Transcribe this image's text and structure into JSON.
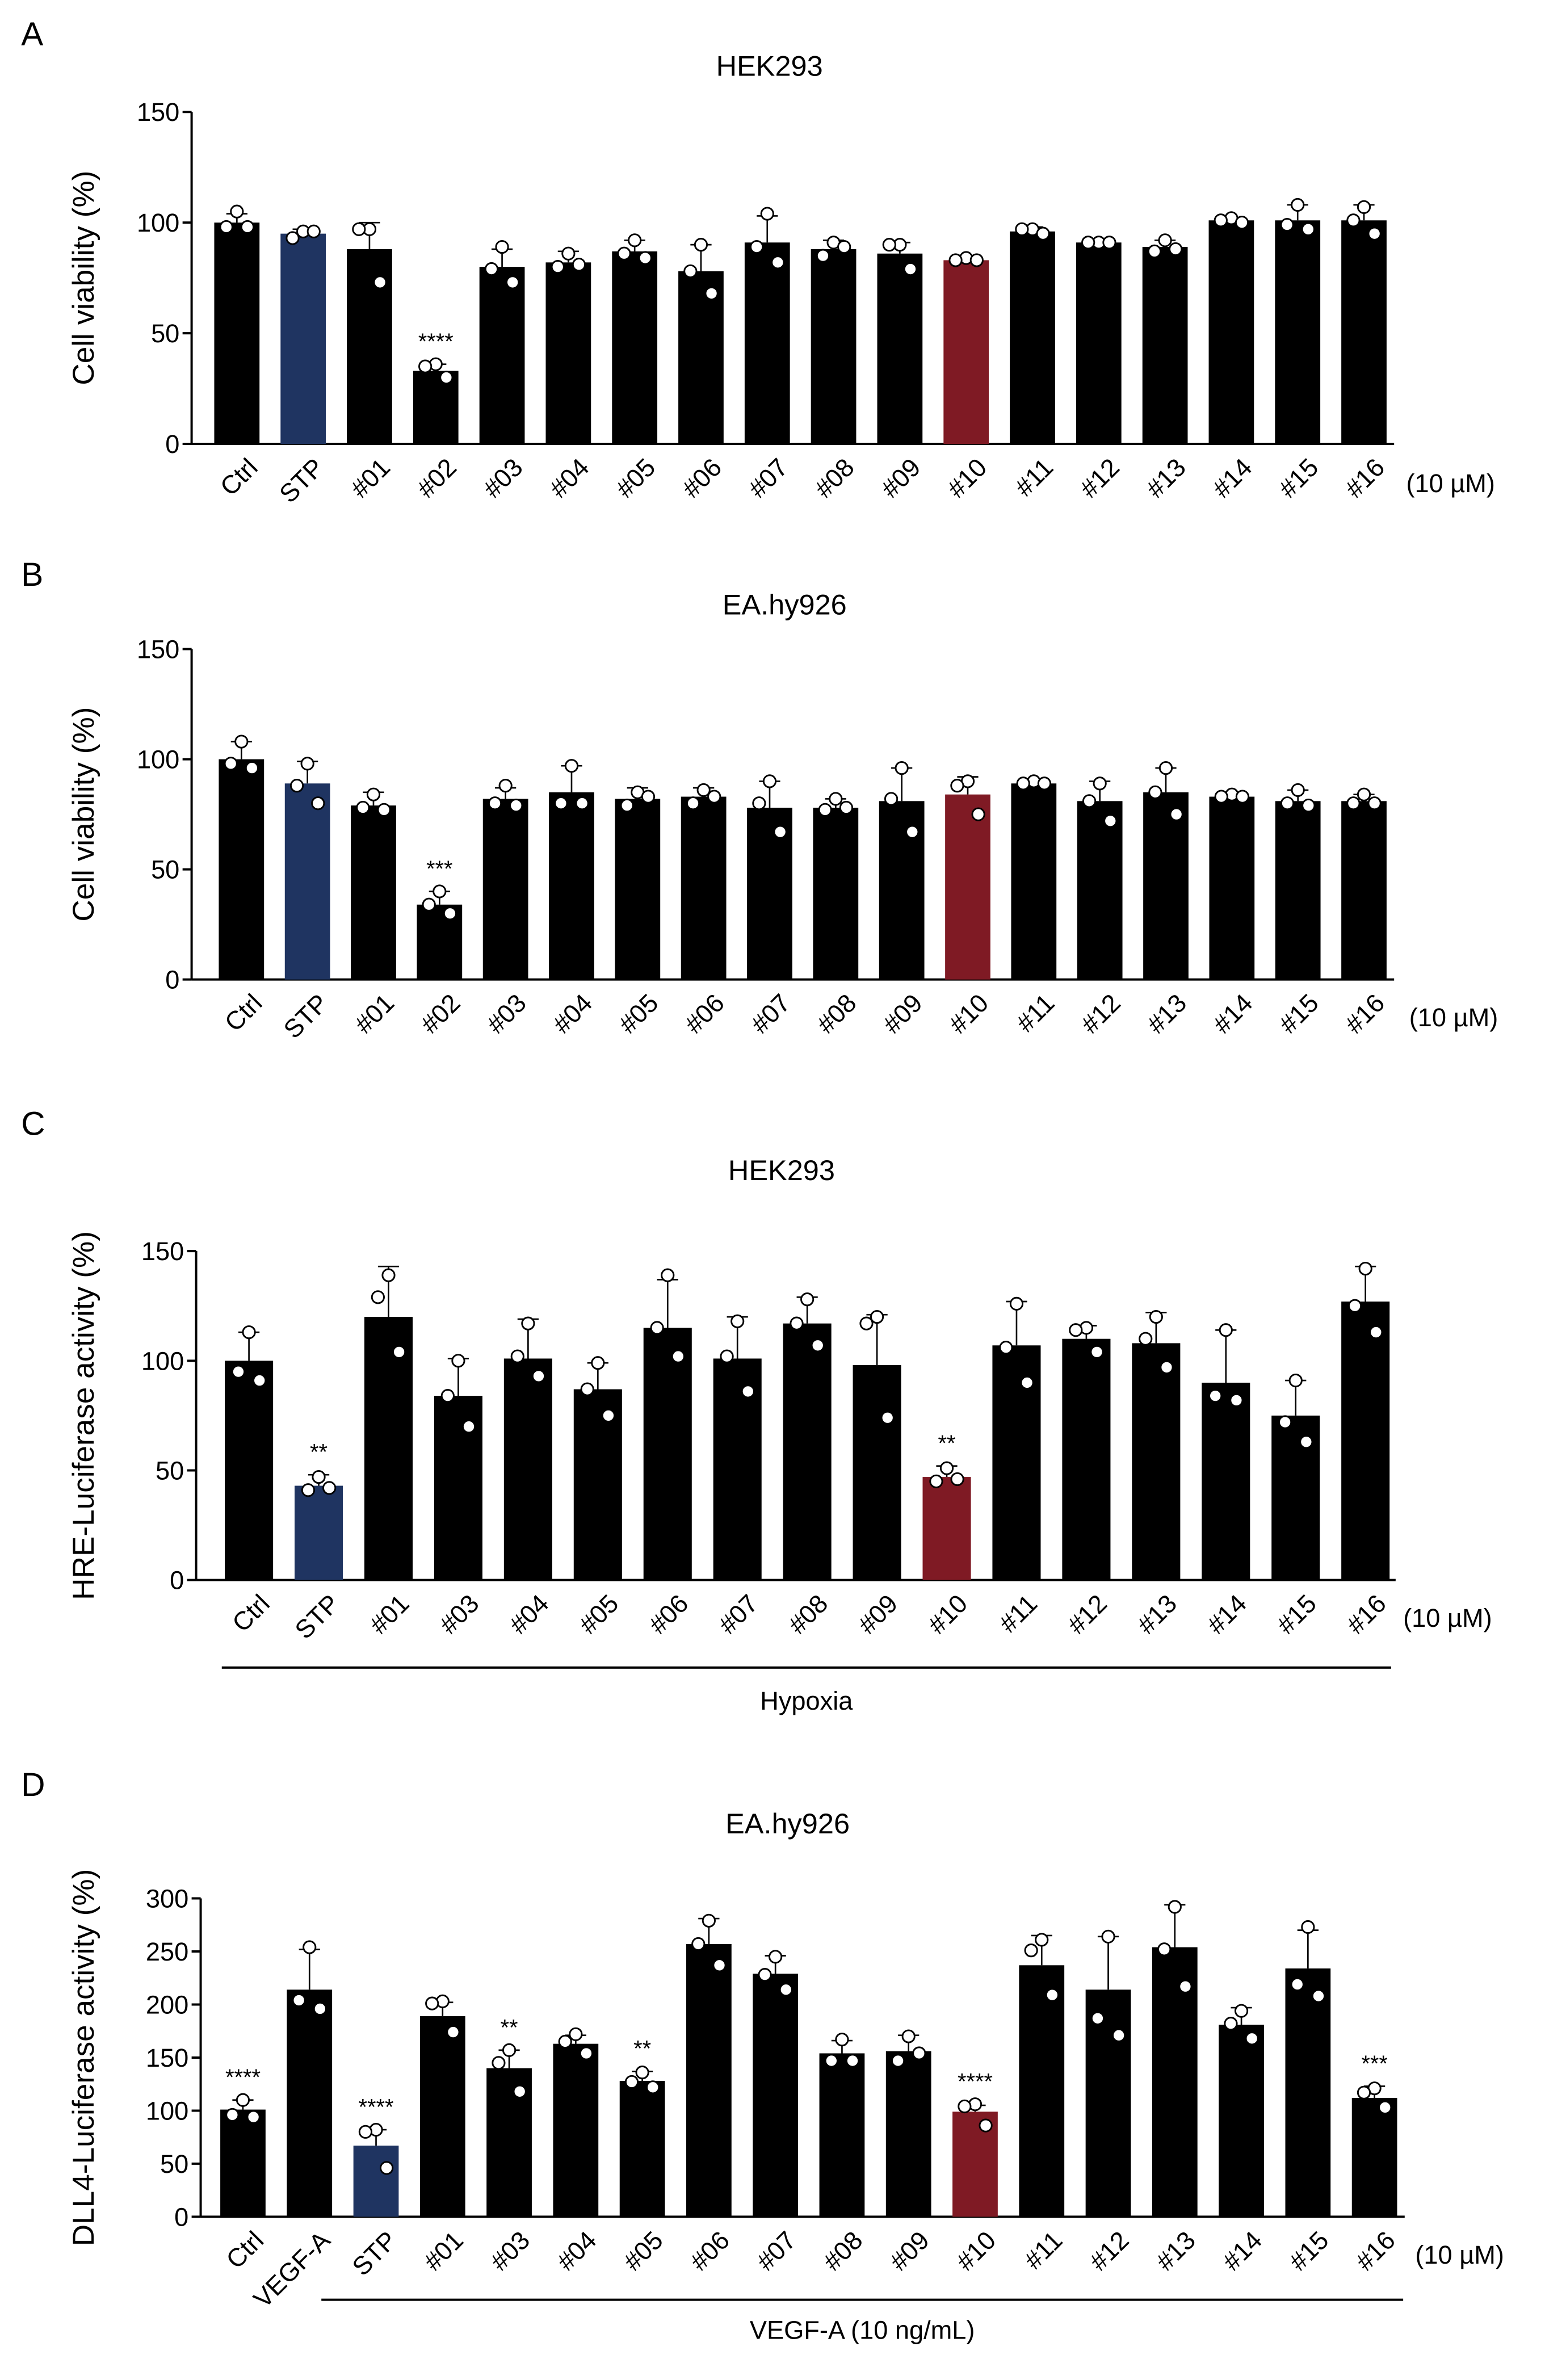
{
  "colors": {
    "bar": "#000000",
    "stp": "#1f3461",
    "compound10": "#7f1a24"
  },
  "chart_data": [
    {
      "panel": "A",
      "type": "bar",
      "title": "HEK293",
      "ylabel": "Cell viability (%)",
      "ylim": [
        0,
        150
      ],
      "yticks": [
        0,
        50,
        100,
        150
      ],
      "unit_note": "(10 µM)",
      "categories": [
        "Ctrl",
        "STP",
        "#01",
        "#02",
        "#03",
        "#04",
        "#05",
        "#06",
        "#07",
        "#08",
        "#09",
        "#10",
        "#11",
        "#12",
        "#13",
        "#14",
        "#15",
        "#16"
      ],
      "values": [
        100,
        95,
        88,
        33,
        80,
        82,
        87,
        78,
        91,
        88,
        86,
        83,
        96,
        91,
        89,
        101,
        101,
        101
      ],
      "sd": [
        4,
        2,
        12,
        3,
        8,
        5,
        5,
        12,
        12,
        4,
        5,
        1,
        2,
        1,
        3,
        1,
        7,
        7
      ],
      "points": [
        [
          105,
          98,
          98
        ],
        [
          96,
          93,
          96
        ],
        [
          97,
          97,
          73
        ],
        [
          36,
          35,
          30
        ],
        [
          89,
          79,
          73
        ],
        [
          86,
          80,
          81
        ],
        [
          92,
          86,
          84
        ],
        [
          90,
          78,
          68
        ],
        [
          104,
          89,
          82
        ],
        [
          91,
          85,
          89
        ],
        [
          90,
          90,
          79
        ],
        [
          84,
          83,
          83
        ],
        [
          97,
          97,
          95
        ],
        [
          91,
          91,
          91
        ],
        [
          92,
          87,
          88
        ],
        [
          102,
          101,
          100
        ],
        [
          108,
          99,
          97
        ],
        [
          107,
          101,
          95
        ]
      ],
      "highlight": {
        "STP": "stp",
        "#10": "compound10"
      },
      "significance": {
        "#02": "****"
      },
      "group_bar": null
    },
    {
      "panel": "B",
      "type": "bar",
      "title": "EA.hy926",
      "ylabel": "Cell viability (%)",
      "ylim": [
        0,
        150
      ],
      "yticks": [
        0,
        50,
        100,
        150
      ],
      "unit_note": "(10 µM)",
      "categories": [
        "Ctrl",
        "STP",
        "#01",
        "#02",
        "#03",
        "#04",
        "#05",
        "#06",
        "#07",
        "#08",
        "#09",
        "#10",
        "#11",
        "#12",
        "#13",
        "#14",
        "#15",
        "#16"
      ],
      "values": [
        100,
        89,
        79,
        34,
        82,
        85,
        82,
        83,
        78,
        78,
        81,
        84,
        89,
        81,
        85,
        83,
        81,
        81
      ],
      "sd": [
        8,
        10,
        6,
        6,
        5,
        12,
        5,
        4,
        12,
        4,
        15,
        8,
        2,
        9,
        11,
        1,
        5,
        3
      ],
      "points": [
        [
          108,
          98,
          96
        ],
        [
          98,
          88,
          80
        ],
        [
          84,
          78,
          77
        ],
        [
          40,
          34,
          30
        ],
        [
          88,
          80,
          79
        ],
        [
          97,
          80,
          80
        ],
        [
          85,
          79,
          83
        ],
        [
          86,
          80,
          83
        ],
        [
          90,
          80,
          67
        ],
        [
          82,
          77,
          78
        ],
        [
          96,
          82,
          67
        ],
        [
          90,
          88,
          75
        ],
        [
          90,
          89,
          89
        ],
        [
          89,
          81,
          72
        ],
        [
          96,
          85,
          75
        ],
        [
          84,
          83,
          83
        ],
        [
          86,
          80,
          79
        ],
        [
          84,
          80,
          80
        ]
      ],
      "highlight": {
        "STP": "stp",
        "#10": "compound10"
      },
      "significance": {
        "#02": "***"
      },
      "group_bar": null
    },
    {
      "panel": "C",
      "type": "bar",
      "title": "HEK293",
      "ylabel": "HRE-Luciferase activity (%)",
      "ylim": [
        0,
        150
      ],
      "yticks": [
        0,
        50,
        100,
        150
      ],
      "unit_note": "(10 µM)",
      "categories": [
        "Ctrl",
        "STP",
        "#01",
        "#03",
        "#04",
        "#05",
        "#06",
        "#07",
        "#08",
        "#09",
        "#10",
        "#11",
        "#12",
        "#13",
        "#14",
        "#15",
        "#16"
      ],
      "values": [
        100,
        43,
        120,
        84,
        101,
        87,
        115,
        101,
        117,
        98,
        47,
        107,
        110,
        108,
        90,
        75,
        127
      ],
      "sd": [
        13,
        5,
        23,
        17,
        18,
        12,
        22,
        19,
        12,
        23,
        5,
        20,
        6,
        14,
        24,
        16,
        16
      ],
      "points": [
        [
          113,
          95,
          91
        ],
        [
          47,
          41,
          42
        ],
        [
          139,
          129,
          104
        ],
        [
          100,
          84,
          70
        ],
        [
          117,
          102,
          93
        ],
        [
          99,
          87,
          75
        ],
        [
          139,
          115,
          102
        ],
        [
          118,
          102,
          86
        ],
        [
          128,
          117,
          107
        ],
        [
          120,
          117,
          74
        ],
        [
          51,
          45,
          46
        ],
        [
          126,
          106,
          90
        ],
        [
          115,
          114,
          104
        ],
        [
          120,
          110,
          97
        ],
        [
          114,
          84,
          82
        ],
        [
          91,
          72,
          63
        ],
        [
          142,
          125,
          113
        ]
      ],
      "highlight": {
        "STP": "stp",
        "#10": "compound10"
      },
      "significance": {
        "STP": "**",
        "#10": "**"
      },
      "group_bar": {
        "label": "Hypoxia",
        "from": "Ctrl",
        "to": "#16"
      }
    },
    {
      "panel": "D",
      "type": "bar",
      "title": "EA.hy926",
      "ylabel": "DLL4-Luciferase activity (%)",
      "ylim": [
        0,
        300
      ],
      "yticks": [
        0,
        50,
        100,
        150,
        200,
        250,
        300
      ],
      "unit_note": "(10 µM)",
      "categories": [
        "Ctrl",
        "VEGF-A",
        "STP",
        "#01",
        "#03",
        "#04",
        "#05",
        "#06",
        "#07",
        "#08",
        "#09",
        "#10",
        "#11",
        "#12",
        "#13",
        "#14",
        "#15",
        "#16"
      ],
      "values": [
        101,
        214,
        67,
        189,
        140,
        163,
        128,
        257,
        229,
        154,
        156,
        99,
        237,
        214,
        254,
        181,
        234,
        112
      ],
      "sd": [
        9,
        38,
        15,
        13,
        17,
        8,
        9,
        24,
        17,
        12,
        15,
        6,
        28,
        50,
        40,
        16,
        36,
        11
      ],
      "points": [
        [
          110,
          96,
          94
        ],
        [
          254,
          204,
          196
        ],
        [
          82,
          80,
          46
        ],
        [
          203,
          201,
          174
        ],
        [
          157,
          145,
          118
        ],
        [
          172,
          165,
          154
        ],
        [
          136,
          127,
          122
        ],
        [
          279,
          257,
          237
        ],
        [
          245,
          228,
          214
        ],
        [
          167,
          147,
          147
        ],
        [
          170,
          147,
          154
        ],
        [
          106,
          104,
          86
        ],
        [
          261,
          251,
          209
        ],
        [
          264,
          187,
          171
        ],
        [
          292,
          252,
          217
        ],
        [
          194,
          182,
          168
        ],
        [
          273,
          219,
          208
        ],
        [
          121,
          117,
          103
        ]
      ],
      "highlight": {
        "STP": "stp",
        "#10": "compound10"
      },
      "significance": {
        "Ctrl": "****",
        "STP": "****",
        "#03": "**",
        "#05": "**",
        "#10": "****",
        "#16": "***"
      },
      "group_bar": {
        "label": "VEGF-A (10 ng/mL)",
        "from": "STP",
        "to": "#16"
      }
    }
  ]
}
